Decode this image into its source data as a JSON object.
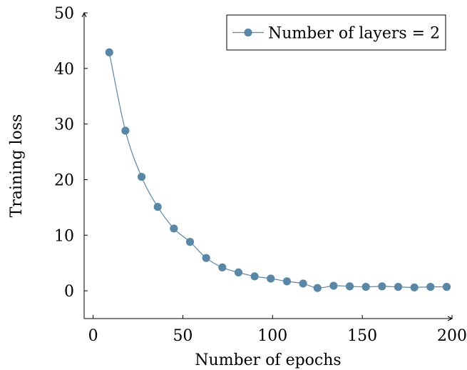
{
  "chart_data": {
    "type": "line",
    "title": "",
    "xlabel": "Number of epochs",
    "ylabel": "Training loss",
    "xlim": [
      -5,
      200
    ],
    "ylim": [
      -5,
      50
    ],
    "xticks": [
      0,
      50,
      100,
      150,
      200
    ],
    "yticks": [
      0,
      10,
      20,
      30,
      40,
      50
    ],
    "grid": false,
    "legend_position": "top-right",
    "series": [
      {
        "name": "Number of layers = 2",
        "color": "#5b87a6",
        "marker": "circle",
        "x": [
          9,
          18,
          27,
          36,
          45,
          54,
          63,
          72,
          81,
          90,
          99,
          108,
          117,
          125,
          134,
          143,
          152,
          161,
          170,
          179,
          188,
          197
        ],
        "y": [
          42.9,
          28.8,
          20.5,
          15.1,
          11.2,
          8.8,
          5.9,
          4.2,
          3.3,
          2.6,
          2.2,
          1.7,
          1.3,
          0.5,
          0.9,
          0.8,
          0.7,
          0.8,
          0.7,
          0.6,
          0.7,
          0.7
        ]
      }
    ]
  }
}
